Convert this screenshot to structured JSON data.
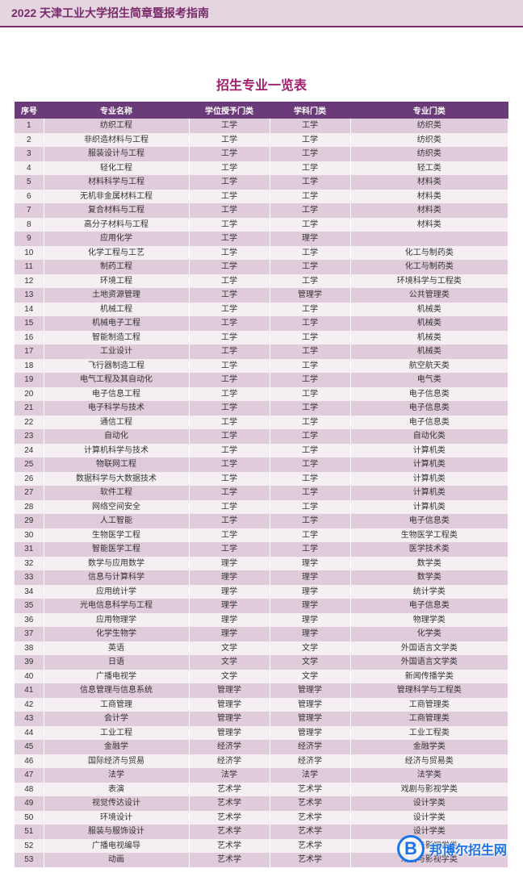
{
  "header_color": "#7a2a6b",
  "accent_color": "#a21f6e",
  "row_odd_bg": "#e0cbdb",
  "row_even_bg": "#f5eff3",
  "th_bg": "#6b3a78",
  "page_header": "2022 天津工业大学招生简章暨报考指南",
  "table_title": "招生专业一览表",
  "columns": [
    "序号",
    "专业名称",
    "学位授予门类",
    "学科门类",
    "专业门类"
  ],
  "rows": [
    [
      "1",
      "纺织工程",
      "工学",
      "工学",
      "纺织类"
    ],
    [
      "2",
      "非织造材料与工程",
      "工学",
      "工学",
      "纺织类"
    ],
    [
      "3",
      "服装设计与工程",
      "工学",
      "工学",
      "纺织类"
    ],
    [
      "4",
      "轻化工程",
      "工学",
      "工学",
      "轻工类"
    ],
    [
      "5",
      "材料科学与工程",
      "工学",
      "工学",
      "材料类"
    ],
    [
      "6",
      "无机非金属材料工程",
      "工学",
      "工学",
      "材料类"
    ],
    [
      "7",
      "复合材料与工程",
      "工学",
      "工学",
      "材料类"
    ],
    [
      "8",
      "高分子材料与工程",
      "工学",
      "工学",
      "材料类"
    ],
    [
      "9",
      "应用化学",
      "工学",
      "理学",
      ""
    ],
    [
      "10",
      "化学工程与工艺",
      "工学",
      "工学",
      "化工与制药类"
    ],
    [
      "11",
      "制药工程",
      "工学",
      "工学",
      "化工与制药类"
    ],
    [
      "12",
      "环境工程",
      "工学",
      "工学",
      "环境科学与工程类"
    ],
    [
      "13",
      "土地资源管理",
      "工学",
      "管理学",
      "公共管理类"
    ],
    [
      "14",
      "机械工程",
      "工学",
      "工学",
      "机械类"
    ],
    [
      "15",
      "机械电子工程",
      "工学",
      "工学",
      "机械类"
    ],
    [
      "16",
      "智能制造工程",
      "工学",
      "工学",
      "机械类"
    ],
    [
      "17",
      "工业设计",
      "工学",
      "工学",
      "机械类"
    ],
    [
      "18",
      "飞行器制造工程",
      "工学",
      "工学",
      "航空航天类"
    ],
    [
      "19",
      "电气工程及其自动化",
      "工学",
      "工学",
      "电气类"
    ],
    [
      "20",
      "电子信息工程",
      "工学",
      "工学",
      "电子信息类"
    ],
    [
      "21",
      "电子科学与技术",
      "工学",
      "工学",
      "电子信息类"
    ],
    [
      "22",
      "通信工程",
      "工学",
      "工学",
      "电子信息类"
    ],
    [
      "23",
      "自动化",
      "工学",
      "工学",
      "自动化类"
    ],
    [
      "24",
      "计算机科学与技术",
      "工学",
      "工学",
      "计算机类"
    ],
    [
      "25",
      "物联网工程",
      "工学",
      "工学",
      "计算机类"
    ],
    [
      "26",
      "数据科学与大数据技术",
      "工学",
      "工学",
      "计算机类"
    ],
    [
      "27",
      "软件工程",
      "工学",
      "工学",
      "计算机类"
    ],
    [
      "28",
      "网络空间安全",
      "工学",
      "工学",
      "计算机类"
    ],
    [
      "29",
      "人工智能",
      "工学",
      "工学",
      "电子信息类"
    ],
    [
      "30",
      "生物医学工程",
      "工学",
      "工学",
      "生物医学工程类"
    ],
    [
      "31",
      "智能医学工程",
      "工学",
      "工学",
      "医学技术类"
    ],
    [
      "32",
      "数学与应用数学",
      "理学",
      "理学",
      "数学类"
    ],
    [
      "33",
      "信息与计算科学",
      "理学",
      "理学",
      "数学类"
    ],
    [
      "34",
      "应用统计学",
      "理学",
      "理学",
      "统计学类"
    ],
    [
      "35",
      "光电信息科学与工程",
      "理学",
      "理学",
      "电子信息类"
    ],
    [
      "36",
      "应用物理学",
      "理学",
      "理学",
      "物理学类"
    ],
    [
      "37",
      "化学生物学",
      "理学",
      "理学",
      "化学类"
    ],
    [
      "38",
      "英语",
      "文学",
      "文学",
      "外国语言文学类"
    ],
    [
      "39",
      "日语",
      "文学",
      "文学",
      "外国语言文学类"
    ],
    [
      "40",
      "广播电视学",
      "文学",
      "文学",
      "新闻传播学类"
    ],
    [
      "41",
      "信息管理与信息系统",
      "管理学",
      "管理学",
      "管理科学与工程类"
    ],
    [
      "42",
      "工商管理",
      "管理学",
      "管理学",
      "工商管理类"
    ],
    [
      "43",
      "会计学",
      "管理学",
      "管理学",
      "工商管理类"
    ],
    [
      "44",
      "工业工程",
      "管理学",
      "管理学",
      "工业工程类"
    ],
    [
      "45",
      "金融学",
      "经济学",
      "经济学",
      "金融学类"
    ],
    [
      "46",
      "国际经济与贸易",
      "经济学",
      "经济学",
      "经济与贸易类"
    ],
    [
      "47",
      "法学",
      "法学",
      "法学",
      "法学类"
    ],
    [
      "48",
      "表演",
      "艺术学",
      "艺术学",
      "戏剧与影视学类"
    ],
    [
      "49",
      "视觉传达设计",
      "艺术学",
      "艺术学",
      "设计学类"
    ],
    [
      "50",
      "环境设计",
      "艺术学",
      "艺术学",
      "设计学类"
    ],
    [
      "51",
      "服装与服饰设计",
      "艺术学",
      "艺术学",
      "设计学类"
    ],
    [
      "52",
      "广播电视编导",
      "艺术学",
      "艺术学",
      "戏剧与影视学类"
    ],
    [
      "53",
      "动画",
      "艺术学",
      "艺术学",
      "戏剧与影视学类"
    ]
  ],
  "watermark": {
    "badge": "B",
    "text": "邦博尔招生网"
  }
}
